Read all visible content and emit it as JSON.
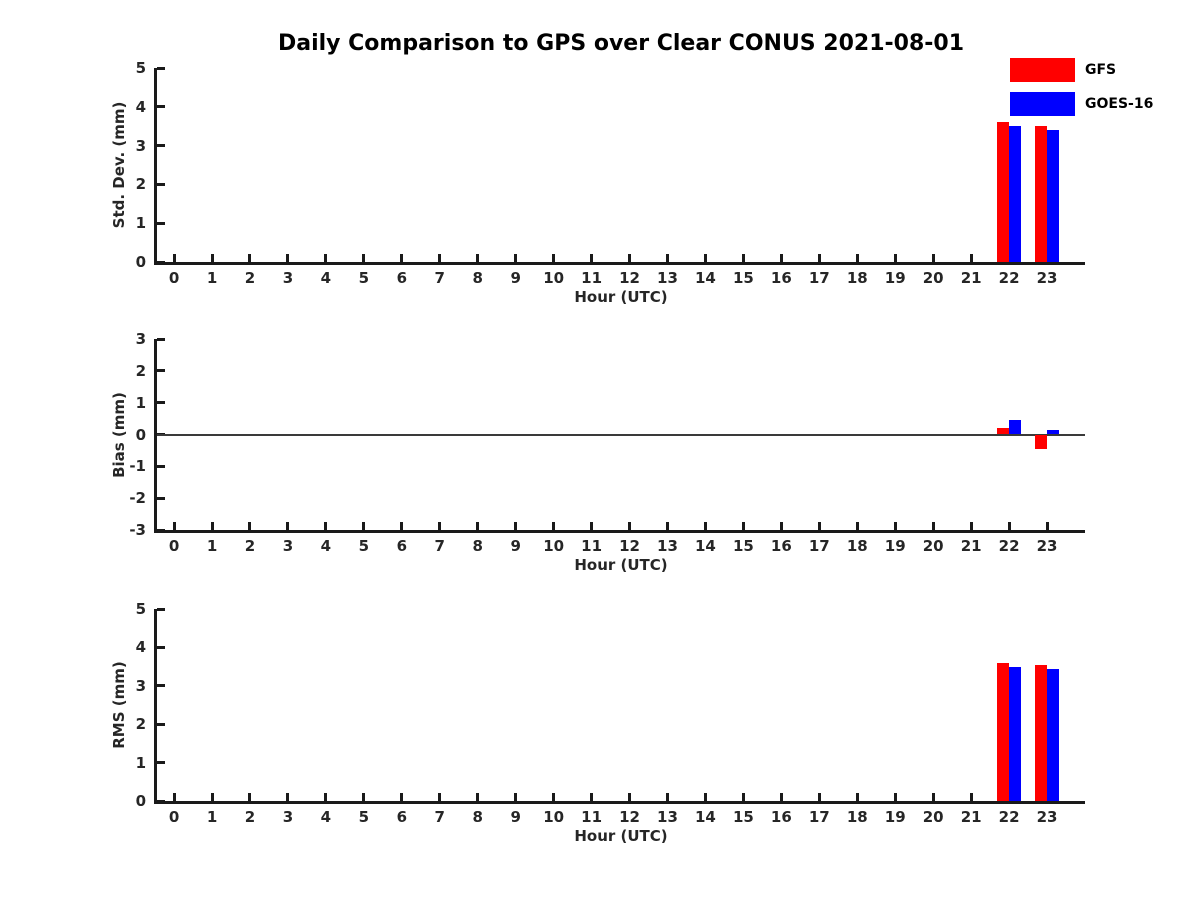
{
  "title": "Daily Comparison to GPS over Clear CONUS 2021-08-01",
  "legend": {
    "items": [
      {
        "label": "GFS",
        "color": "#ff0000"
      },
      {
        "label": "GOES-16",
        "color": "#0000ff"
      }
    ]
  },
  "colors": {
    "gfs": "#ff0000",
    "goes16": "#0000ff",
    "axis": "#1a1a1a",
    "text": "#262626",
    "zero_line": "#3a3a3a",
    "background": "#ffffff"
  },
  "chart_data": [
    {
      "type": "bar",
      "panel": "std-dev",
      "ylabel": "Std. Dev. (mm)",
      "xlabel": "Hour (UTC)",
      "categories": [
        0,
        1,
        2,
        3,
        4,
        5,
        6,
        7,
        8,
        9,
        10,
        11,
        12,
        13,
        14,
        15,
        16,
        17,
        18,
        19,
        20,
        21,
        22,
        23
      ],
      "ylim": [
        0,
        5
      ],
      "yticks": [
        0,
        1,
        2,
        3,
        4,
        5
      ],
      "zero_line": false,
      "grid": false,
      "legend_position": "upper-right-outside",
      "series": [
        {
          "name": "GFS",
          "color": "#ff0000",
          "values": [
            null,
            null,
            null,
            null,
            null,
            null,
            null,
            null,
            null,
            null,
            null,
            null,
            null,
            null,
            null,
            null,
            null,
            null,
            null,
            null,
            null,
            null,
            3.6,
            3.5
          ]
        },
        {
          "name": "GOES-16",
          "color": "#0000ff",
          "values": [
            null,
            null,
            null,
            null,
            null,
            null,
            null,
            null,
            null,
            null,
            null,
            null,
            null,
            null,
            null,
            null,
            null,
            null,
            null,
            null,
            null,
            null,
            3.5,
            3.4
          ]
        }
      ]
    },
    {
      "type": "bar",
      "panel": "bias",
      "ylabel": "Bias (mm)",
      "xlabel": "Hour (UTC)",
      "categories": [
        0,
        1,
        2,
        3,
        4,
        5,
        6,
        7,
        8,
        9,
        10,
        11,
        12,
        13,
        14,
        15,
        16,
        17,
        18,
        19,
        20,
        21,
        22,
        23
      ],
      "ylim": [
        -3,
        3
      ],
      "yticks": [
        -3,
        -2,
        -1,
        0,
        1,
        2,
        3
      ],
      "zero_line": true,
      "grid": false,
      "series": [
        {
          "name": "GFS",
          "color": "#ff0000",
          "values": [
            null,
            null,
            null,
            null,
            null,
            null,
            null,
            null,
            null,
            null,
            null,
            null,
            null,
            null,
            null,
            null,
            null,
            null,
            null,
            null,
            null,
            null,
            0.2,
            -0.45
          ]
        },
        {
          "name": "GOES-16",
          "color": "#0000ff",
          "values": [
            null,
            null,
            null,
            null,
            null,
            null,
            null,
            null,
            null,
            null,
            null,
            null,
            null,
            null,
            null,
            null,
            null,
            null,
            null,
            null,
            null,
            null,
            0.45,
            0.15
          ]
        }
      ]
    },
    {
      "type": "bar",
      "panel": "rms",
      "ylabel": "RMS (mm)",
      "xlabel": "Hour (UTC)",
      "categories": [
        0,
        1,
        2,
        3,
        4,
        5,
        6,
        7,
        8,
        9,
        10,
        11,
        12,
        13,
        14,
        15,
        16,
        17,
        18,
        19,
        20,
        21,
        22,
        23
      ],
      "ylim": [
        0,
        5
      ],
      "yticks": [
        0,
        1,
        2,
        3,
        4,
        5
      ],
      "zero_line": false,
      "grid": false,
      "series": [
        {
          "name": "GFS",
          "color": "#ff0000",
          "values": [
            null,
            null,
            null,
            null,
            null,
            null,
            null,
            null,
            null,
            null,
            null,
            null,
            null,
            null,
            null,
            null,
            null,
            null,
            null,
            null,
            null,
            null,
            3.6,
            3.55
          ]
        },
        {
          "name": "GOES-16",
          "color": "#0000ff",
          "values": [
            null,
            null,
            null,
            null,
            null,
            null,
            null,
            null,
            null,
            null,
            null,
            null,
            null,
            null,
            null,
            null,
            null,
            null,
            null,
            null,
            null,
            null,
            3.5,
            3.45
          ]
        }
      ]
    }
  ]
}
